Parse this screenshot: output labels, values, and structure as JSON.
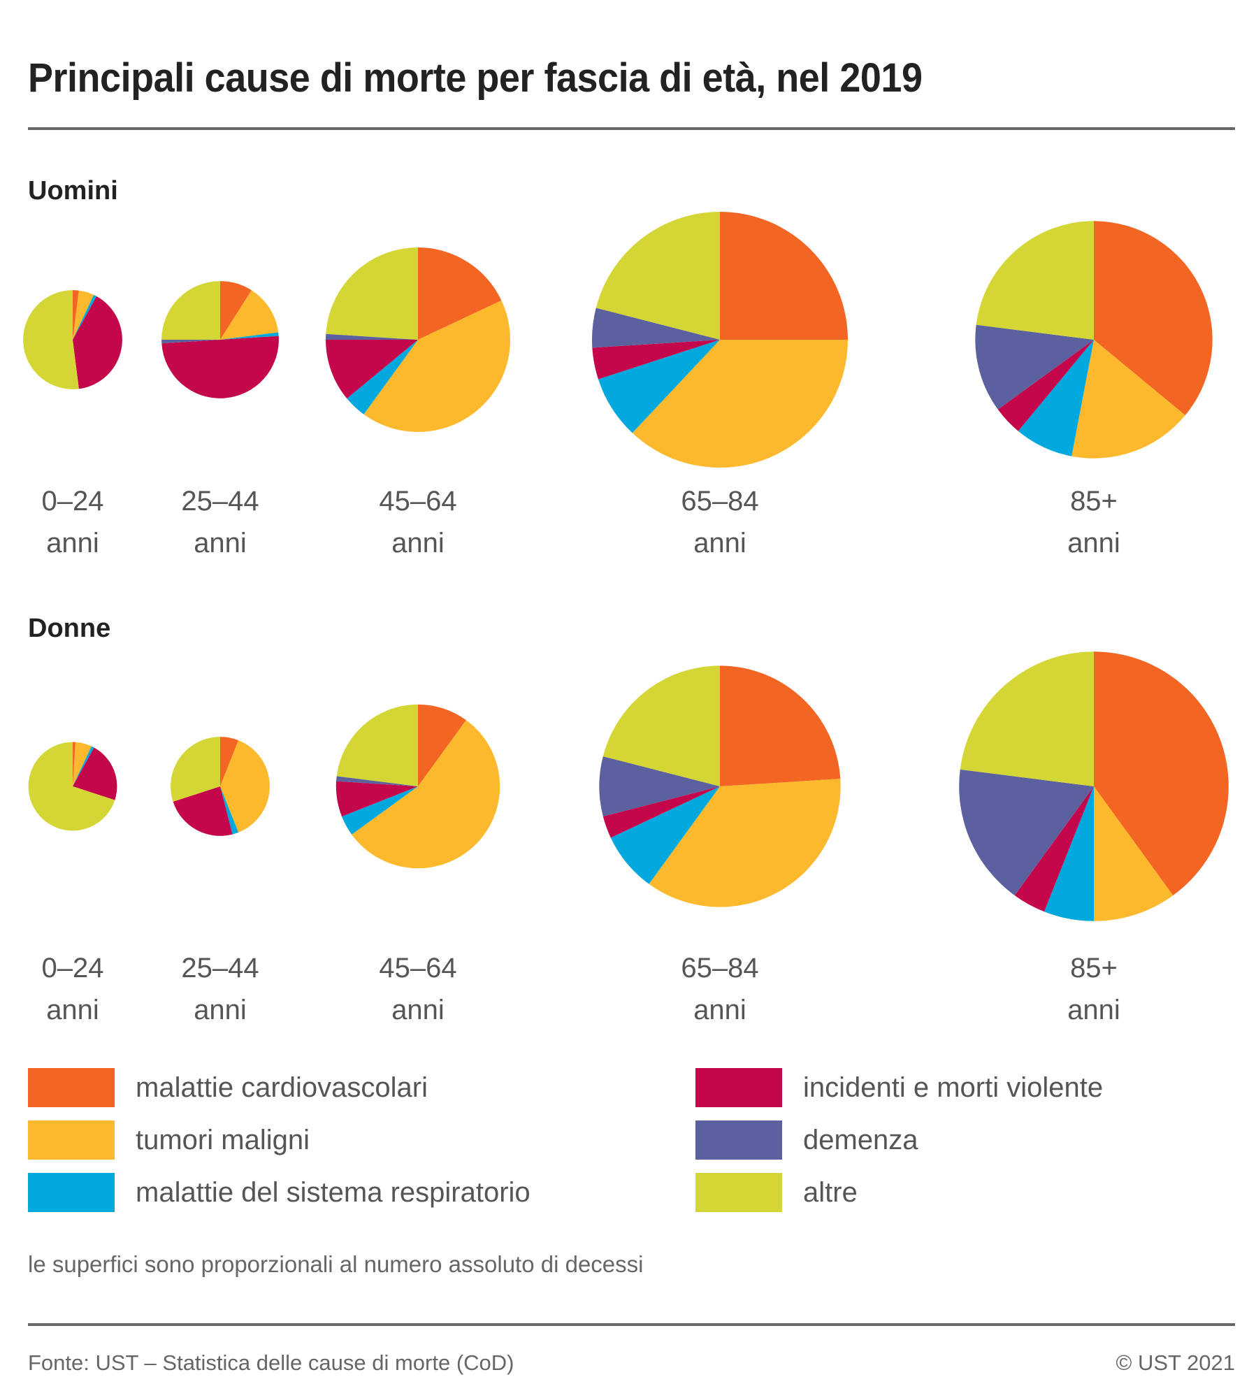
{
  "title": "Principali cause di morte per fascia di età, nel 2019",
  "note": "le superfici sono proporzionali al numero assoluto di decessi",
  "source": "Fonte: UST – Statistica delle cause di morte (CoD)",
  "copyright": "© UST 2021",
  "chart_data": {
    "type": "pie",
    "title": "Principali cause di morte per fascia di età, nel 2019",
    "note": "le superfici sono proporzionali al numero assoluto di decessi",
    "categories": [
      {
        "key": "cardio",
        "label": "malattie cardiovascolari",
        "color": "#F26522"
      },
      {
        "key": "tumori",
        "label": "tumori maligni",
        "color": "#FDB92E"
      },
      {
        "key": "resp",
        "label": "malattie del sistema respiratorio",
        "color": "#00A8DE"
      },
      {
        "key": "incid",
        "label": "incidenti e morti violente",
        "color": "#C4074A"
      },
      {
        "key": "demenza",
        "label": "demenza",
        "color": "#5B619E"
      },
      {
        "key": "altre",
        "label": "altre",
        "color": "#D4D636"
      }
    ],
    "legend_placement": "bottom",
    "groups": [
      {
        "name": "Uomini",
        "pies": [
          {
            "age": "0–24",
            "unit": "anni",
            "relative_size": 0.15,
            "shares": {
              "cardio": 2,
              "tumori": 5,
              "resp": 1,
              "incid": 40,
              "demenza": 0,
              "altre": 52
            }
          },
          {
            "age": "25–44",
            "unit": "anni",
            "relative_size": 0.21,
            "shares": {
              "cardio": 9,
              "tumori": 14,
              "resp": 1,
              "incid": 50,
              "demenza": 1,
              "altre": 25
            }
          },
          {
            "age": "45–64",
            "unit": "anni",
            "relative_size": 0.52,
            "shares": {
              "cardio": 18,
              "tumori": 42,
              "resp": 4,
              "incid": 11,
              "demenza": 1,
              "altre": 24
            }
          },
          {
            "age": "65–84",
            "unit": "anni",
            "relative_size": 1.0,
            "shares": {
              "cardio": 25,
              "tumori": 37,
              "resp": 8,
              "incid": 4,
              "demenza": 5,
              "altre": 21
            }
          },
          {
            "age": "85+",
            "unit": "anni",
            "relative_size": 0.86,
            "shares": {
              "cardio": 36,
              "tumori": 17,
              "resp": 8,
              "incid": 4,
              "demenza": 12,
              "altre": 23
            }
          }
        ]
      },
      {
        "name": "Donne",
        "pies": [
          {
            "age": "0–24",
            "unit": "anni",
            "relative_size": 0.12,
            "shares": {
              "cardio": 1,
              "tumori": 6,
              "resp": 1,
              "incid": 22,
              "demenza": 0,
              "altre": 70
            }
          },
          {
            "age": "25–44",
            "unit": "anni",
            "relative_size": 0.15,
            "shares": {
              "cardio": 6,
              "tumori": 38,
              "resp": 2,
              "incid": 24,
              "demenza": 0,
              "altre": 30
            }
          },
          {
            "age": "45–64",
            "unit": "anni",
            "relative_size": 0.41,
            "shares": {
              "cardio": 10,
              "tumori": 55,
              "resp": 4,
              "incid": 7,
              "demenza": 1,
              "altre": 23
            }
          },
          {
            "age": "65–84",
            "unit": "anni",
            "relative_size": 0.89,
            "shares": {
              "cardio": 24,
              "tumori": 36,
              "resp": 8,
              "incid": 3,
              "demenza": 8,
              "altre": 21
            }
          },
          {
            "age": "85+",
            "unit": "anni",
            "relative_size": 1.11,
            "shares": {
              "cardio": 40,
              "tumori": 10,
              "resp": 6,
              "incid": 4,
              "demenza": 17,
              "altre": 23
            }
          }
        ]
      }
    ]
  }
}
